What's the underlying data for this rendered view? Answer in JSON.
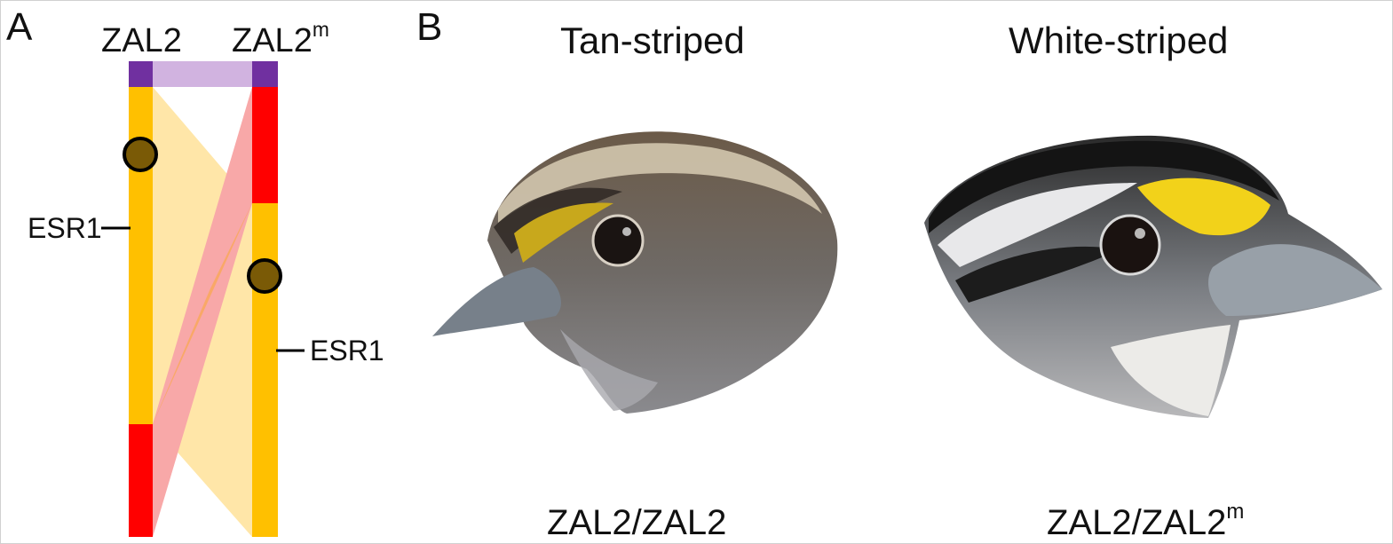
{
  "panel_a": {
    "letter": "A",
    "chromosome_left": {
      "base": "ZAL2",
      "sup": ""
    },
    "chromosome_right": {
      "base": "ZAL2",
      "sup": "m"
    },
    "gene_left": "ESR1",
    "gene_right": "ESR1"
  },
  "panel_b": {
    "letter": "B",
    "left": {
      "title": "Tan-striped",
      "genotype": {
        "base": "ZAL2/ZAL2",
        "sup": ""
      }
    },
    "right": {
      "title": "White-striped",
      "genotype": {
        "base": "ZAL2/ZAL2",
        "sup": "m"
      }
    }
  },
  "colors": {
    "purple_segment": "#7030a0",
    "purple_band": "#d1b3e0",
    "orange_segment": "#ffc000",
    "orange_band": "#ffe6a8",
    "red_segment": "#ff0000",
    "red_band": "#f8a8a8",
    "overlap_band": "#f9a85c",
    "centromere": "#7a5a06"
  }
}
